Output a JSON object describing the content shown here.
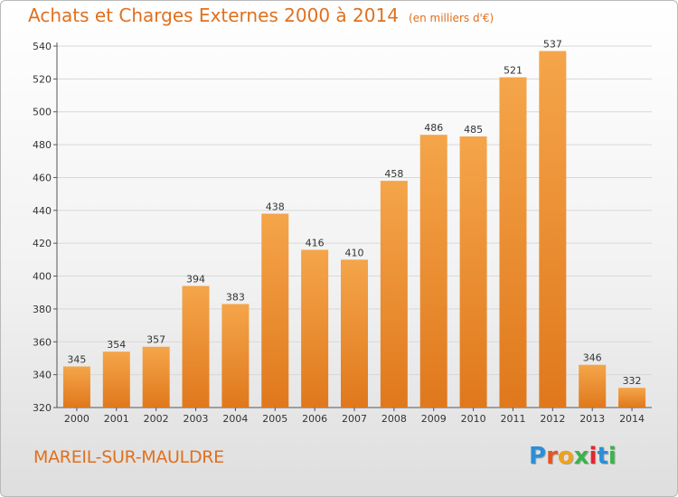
{
  "title": "Achats et Charges Externes 2000 à 2014",
  "subtitle": "(en milliers d'€)",
  "city": "MAREIL-SUR-MAULDRE",
  "logo": {
    "letters": [
      "P",
      "r",
      "o",
      "x",
      "i",
      "t",
      "i"
    ],
    "colors": [
      "#2b8fd6",
      "#e8551d",
      "#f1a11a",
      "#3bb34a",
      "#e2262e",
      "#2b8fd6",
      "#3bb34a"
    ]
  },
  "colors": {
    "bar_top": "#f5a54a",
    "bar_bottom": "#e0781c",
    "title": "#e0701e"
  },
  "chart_data": {
    "type": "bar",
    "categories": [
      "2000",
      "2001",
      "2002",
      "2003",
      "2004",
      "2005",
      "2006",
      "2007",
      "2008",
      "2009",
      "2010",
      "2011",
      "2012",
      "2013",
      "2014"
    ],
    "values": [
      345,
      354,
      357,
      394,
      383,
      438,
      416,
      410,
      458,
      486,
      485,
      521,
      537,
      346,
      332
    ],
    "ylim": [
      320,
      540
    ],
    "yticks": [
      320,
      340,
      360,
      380,
      400,
      420,
      440,
      460,
      480,
      500,
      520,
      540
    ],
    "grid": true,
    "legend": "none"
  }
}
